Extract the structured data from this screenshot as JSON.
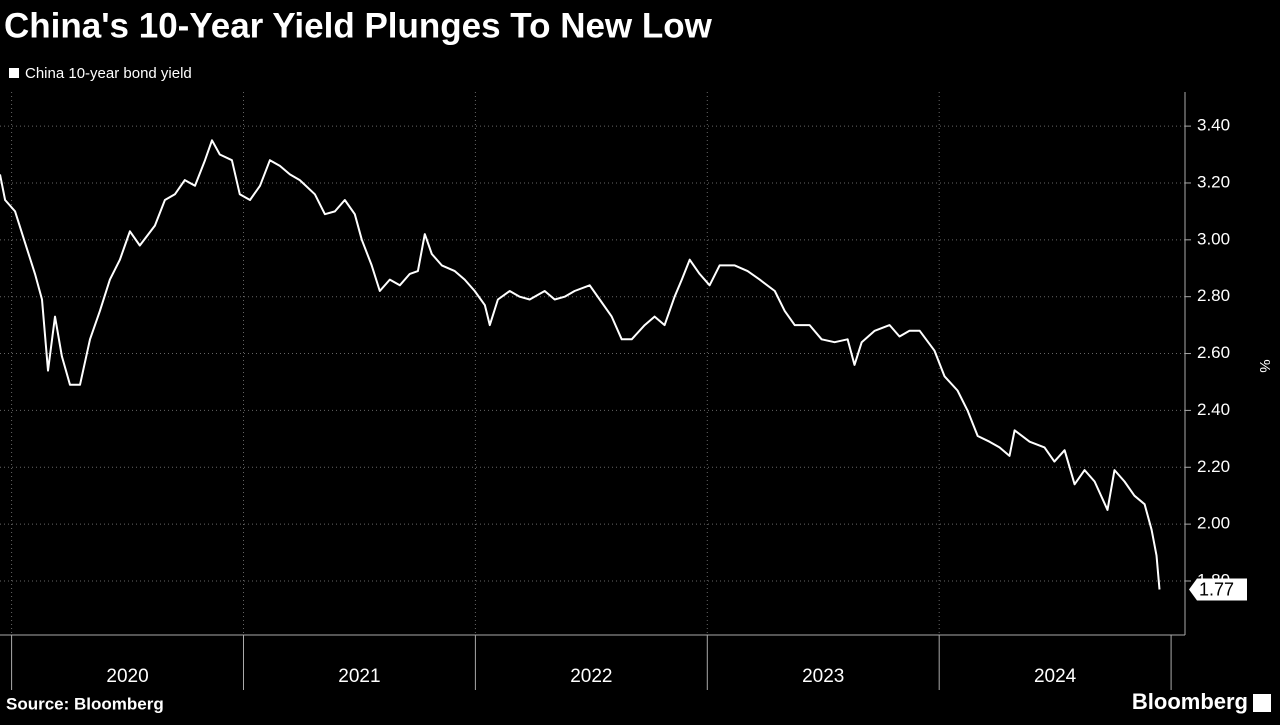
{
  "chart_data": {
    "type": "line",
    "title": "China's 10-Year Yield Plunges To New Low",
    "y_axis_label": "%",
    "source": "Source: Bloomberg",
    "brand": "Bloomberg",
    "grid": true,
    "xlim": [
      2019.95,
      2025.06
    ],
    "xticks": [
      2020,
      2021,
      2022,
      2023,
      2024
    ],
    "ylim": [
      1.61,
      3.52
    ],
    "yticks": [
      {
        "value": 1.8,
        "label": "1.80"
      },
      {
        "value": 2.0,
        "label": "2.00"
      },
      {
        "value": 2.2,
        "label": "2.20"
      },
      {
        "value": 2.4,
        "label": "2.40"
      },
      {
        "value": 2.6,
        "label": "2.60"
      },
      {
        "value": 2.8,
        "label": "2.80"
      },
      {
        "value": 3.0,
        "label": "3.00"
      },
      {
        "value": 3.2,
        "label": "3.20"
      },
      {
        "value": 3.4,
        "label": "3.40"
      }
    ],
    "series": [
      {
        "name": "China 10-year bond yield",
        "color": "#ffffff",
        "x": [
          2019.95,
          2019.972,
          2020.015,
          2020.058,
          2020.101,
          2020.131,
          2020.157,
          2020.187,
          2020.217,
          2020.252,
          2020.295,
          2020.338,
          2020.381,
          2020.424,
          2020.467,
          2020.51,
          2020.553,
          2020.618,
          2020.661,
          2020.704,
          2020.747,
          2020.791,
          2020.834,
          2020.864,
          2020.898,
          2020.95,
          2020.984,
          2021.028,
          2021.071,
          2021.114,
          2021.157,
          2021.2,
          2021.243,
          2021.308,
          2021.351,
          2021.394,
          2021.437,
          2021.48,
          2021.51,
          2021.553,
          2021.588,
          2021.631,
          2021.674,
          2021.717,
          2021.752,
          2021.782,
          2021.812,
          2021.855,
          2021.911,
          2021.954,
          2021.997,
          2022.041,
          2022.062,
          2022.097,
          2022.148,
          2022.191,
          2022.234,
          2022.299,
          2022.342,
          2022.385,
          2022.428,
          2022.493,
          2022.536,
          2022.588,
          2022.631,
          2022.674,
          2022.73,
          2022.773,
          2022.816,
          2022.859,
          2022.89,
          2022.924,
          2022.967,
          2023.01,
          2023.053,
          2023.118,
          2023.174,
          2023.226,
          2023.291,
          2023.334,
          2023.377,
          2023.441,
          2023.493,
          2023.549,
          2023.605,
          2023.635,
          2023.666,
          2023.722,
          2023.786,
          2023.829,
          2023.872,
          2023.916,
          2023.98,
          2024.023,
          2024.079,
          2024.122,
          2024.166,
          2024.217,
          2024.26,
          2024.303,
          2024.325,
          2024.39,
          2024.454,
          2024.497,
          2024.541,
          2024.584,
          2024.627,
          2024.67,
          2024.726,
          2024.756,
          2024.799,
          2024.842,
          2024.886,
          2024.916,
          2024.937,
          2024.95
        ],
        "values": [
          3.23,
          3.14,
          3.1,
          2.99,
          2.88,
          2.79,
          2.54,
          2.73,
          2.59,
          2.49,
          2.49,
          2.65,
          2.75,
          2.86,
          2.93,
          3.03,
          2.98,
          3.05,
          3.14,
          3.16,
          3.21,
          3.19,
          3.28,
          3.35,
          3.3,
          3.28,
          3.16,
          3.14,
          3.19,
          3.28,
          3.26,
          3.23,
          3.21,
          3.16,
          3.09,
          3.1,
          3.14,
          3.09,
          3.0,
          2.91,
          2.82,
          2.86,
          2.84,
          2.88,
          2.89,
          3.02,
          2.95,
          2.91,
          2.89,
          2.86,
          2.82,
          2.77,
          2.7,
          2.79,
          2.82,
          2.8,
          2.79,
          2.82,
          2.79,
          2.8,
          2.82,
          2.84,
          2.79,
          2.73,
          2.65,
          2.65,
          2.7,
          2.73,
          2.7,
          2.8,
          2.86,
          2.93,
          2.88,
          2.84,
          2.91,
          2.91,
          2.89,
          2.86,
          2.82,
          2.75,
          2.7,
          2.7,
          2.65,
          2.64,
          2.65,
          2.56,
          2.64,
          2.68,
          2.7,
          2.66,
          2.68,
          2.68,
          2.61,
          2.52,
          2.47,
          2.4,
          2.31,
          2.29,
          2.27,
          2.24,
          2.33,
          2.29,
          2.27,
          2.22,
          2.26,
          2.14,
          2.19,
          2.15,
          2.05,
          2.19,
          2.15,
          2.1,
          2.07,
          1.98,
          1.89,
          1.77
        ]
      }
    ]
  }
}
